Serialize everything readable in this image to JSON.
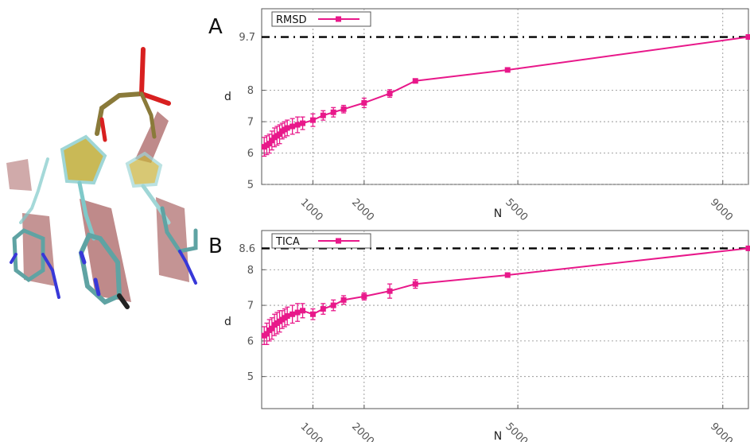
{
  "chart_data": [
    {
      "type": "line",
      "panel_label": "A",
      "xlabel": "N",
      "ylabel": "d",
      "xlim": [
        0,
        9500
      ],
      "ylim": [
        5,
        10.6
      ],
      "xticks": [
        1000,
        2000,
        5000,
        9000
      ],
      "yticks": [
        5,
        6,
        7,
        8
      ],
      "reference_line": {
        "value": 9.7,
        "label": "9.7"
      },
      "grid": true,
      "legend_position": "top-left",
      "series": [
        {
          "name": "RMSD",
          "color": "#e8188a",
          "x": [
            50,
            100,
            150,
            200,
            250,
            300,
            350,
            400,
            450,
            500,
            600,
            700,
            800,
            1000,
            1200,
            1400,
            1600,
            2000,
            2500,
            3000,
            4800,
            9500
          ],
          "y": [
            6.2,
            6.25,
            6.3,
            6.4,
            6.5,
            6.55,
            6.6,
            6.7,
            6.75,
            6.8,
            6.85,
            6.9,
            6.95,
            7.05,
            7.2,
            7.3,
            7.4,
            7.6,
            7.9,
            8.3,
            8.65,
            9.7
          ],
          "err": [
            0.3,
            0.3,
            0.3,
            0.3,
            0.3,
            0.3,
            0.3,
            0.25,
            0.25,
            0.25,
            0.25,
            0.25,
            0.2,
            0.2,
            0.15,
            0.15,
            0.12,
            0.15,
            0.12,
            0.05,
            0.05,
            0.05
          ]
        }
      ]
    },
    {
      "type": "line",
      "panel_label": "B",
      "xlabel": "N",
      "ylabel": "d",
      "xlim": [
        0,
        9500
      ],
      "ylim": [
        4.1,
        9.1
      ],
      "xticks": [
        1000,
        2000,
        5000,
        9000
      ],
      "yticks": [
        5,
        6,
        7,
        8
      ],
      "reference_line": {
        "value": 8.6,
        "label": "8.6"
      },
      "grid": true,
      "legend_position": "top-left",
      "series": [
        {
          "name": "TICA",
          "color": "#e8188a",
          "x": [
            50,
            100,
            150,
            200,
            250,
            300,
            350,
            400,
            450,
            500,
            600,
            700,
            800,
            1000,
            1200,
            1400,
            1600,
            2000,
            2500,
            3000,
            4800,
            9500
          ],
          "y": [
            6.15,
            6.2,
            6.3,
            6.35,
            6.45,
            6.5,
            6.55,
            6.6,
            6.65,
            6.7,
            6.75,
            6.8,
            6.85,
            6.75,
            6.9,
            7.0,
            7.15,
            7.25,
            7.4,
            7.6,
            7.85,
            8.6
          ],
          "err": [
            0.25,
            0.3,
            0.3,
            0.3,
            0.3,
            0.3,
            0.3,
            0.25,
            0.25,
            0.25,
            0.25,
            0.25,
            0.2,
            0.15,
            0.15,
            0.15,
            0.12,
            0.1,
            0.2,
            0.12,
            0.05,
            0.05
          ]
        }
      ]
    }
  ],
  "molecule": {
    "colors": {
      "carbon": "#7fc9c9",
      "oxygen": "#d82020",
      "nitrogen": "#3838d8",
      "phosphorus": "#8a7a3a",
      "ring_fill_yellow": "#b8a21e",
      "ring_fill_red": "#8a2a2a"
    }
  }
}
